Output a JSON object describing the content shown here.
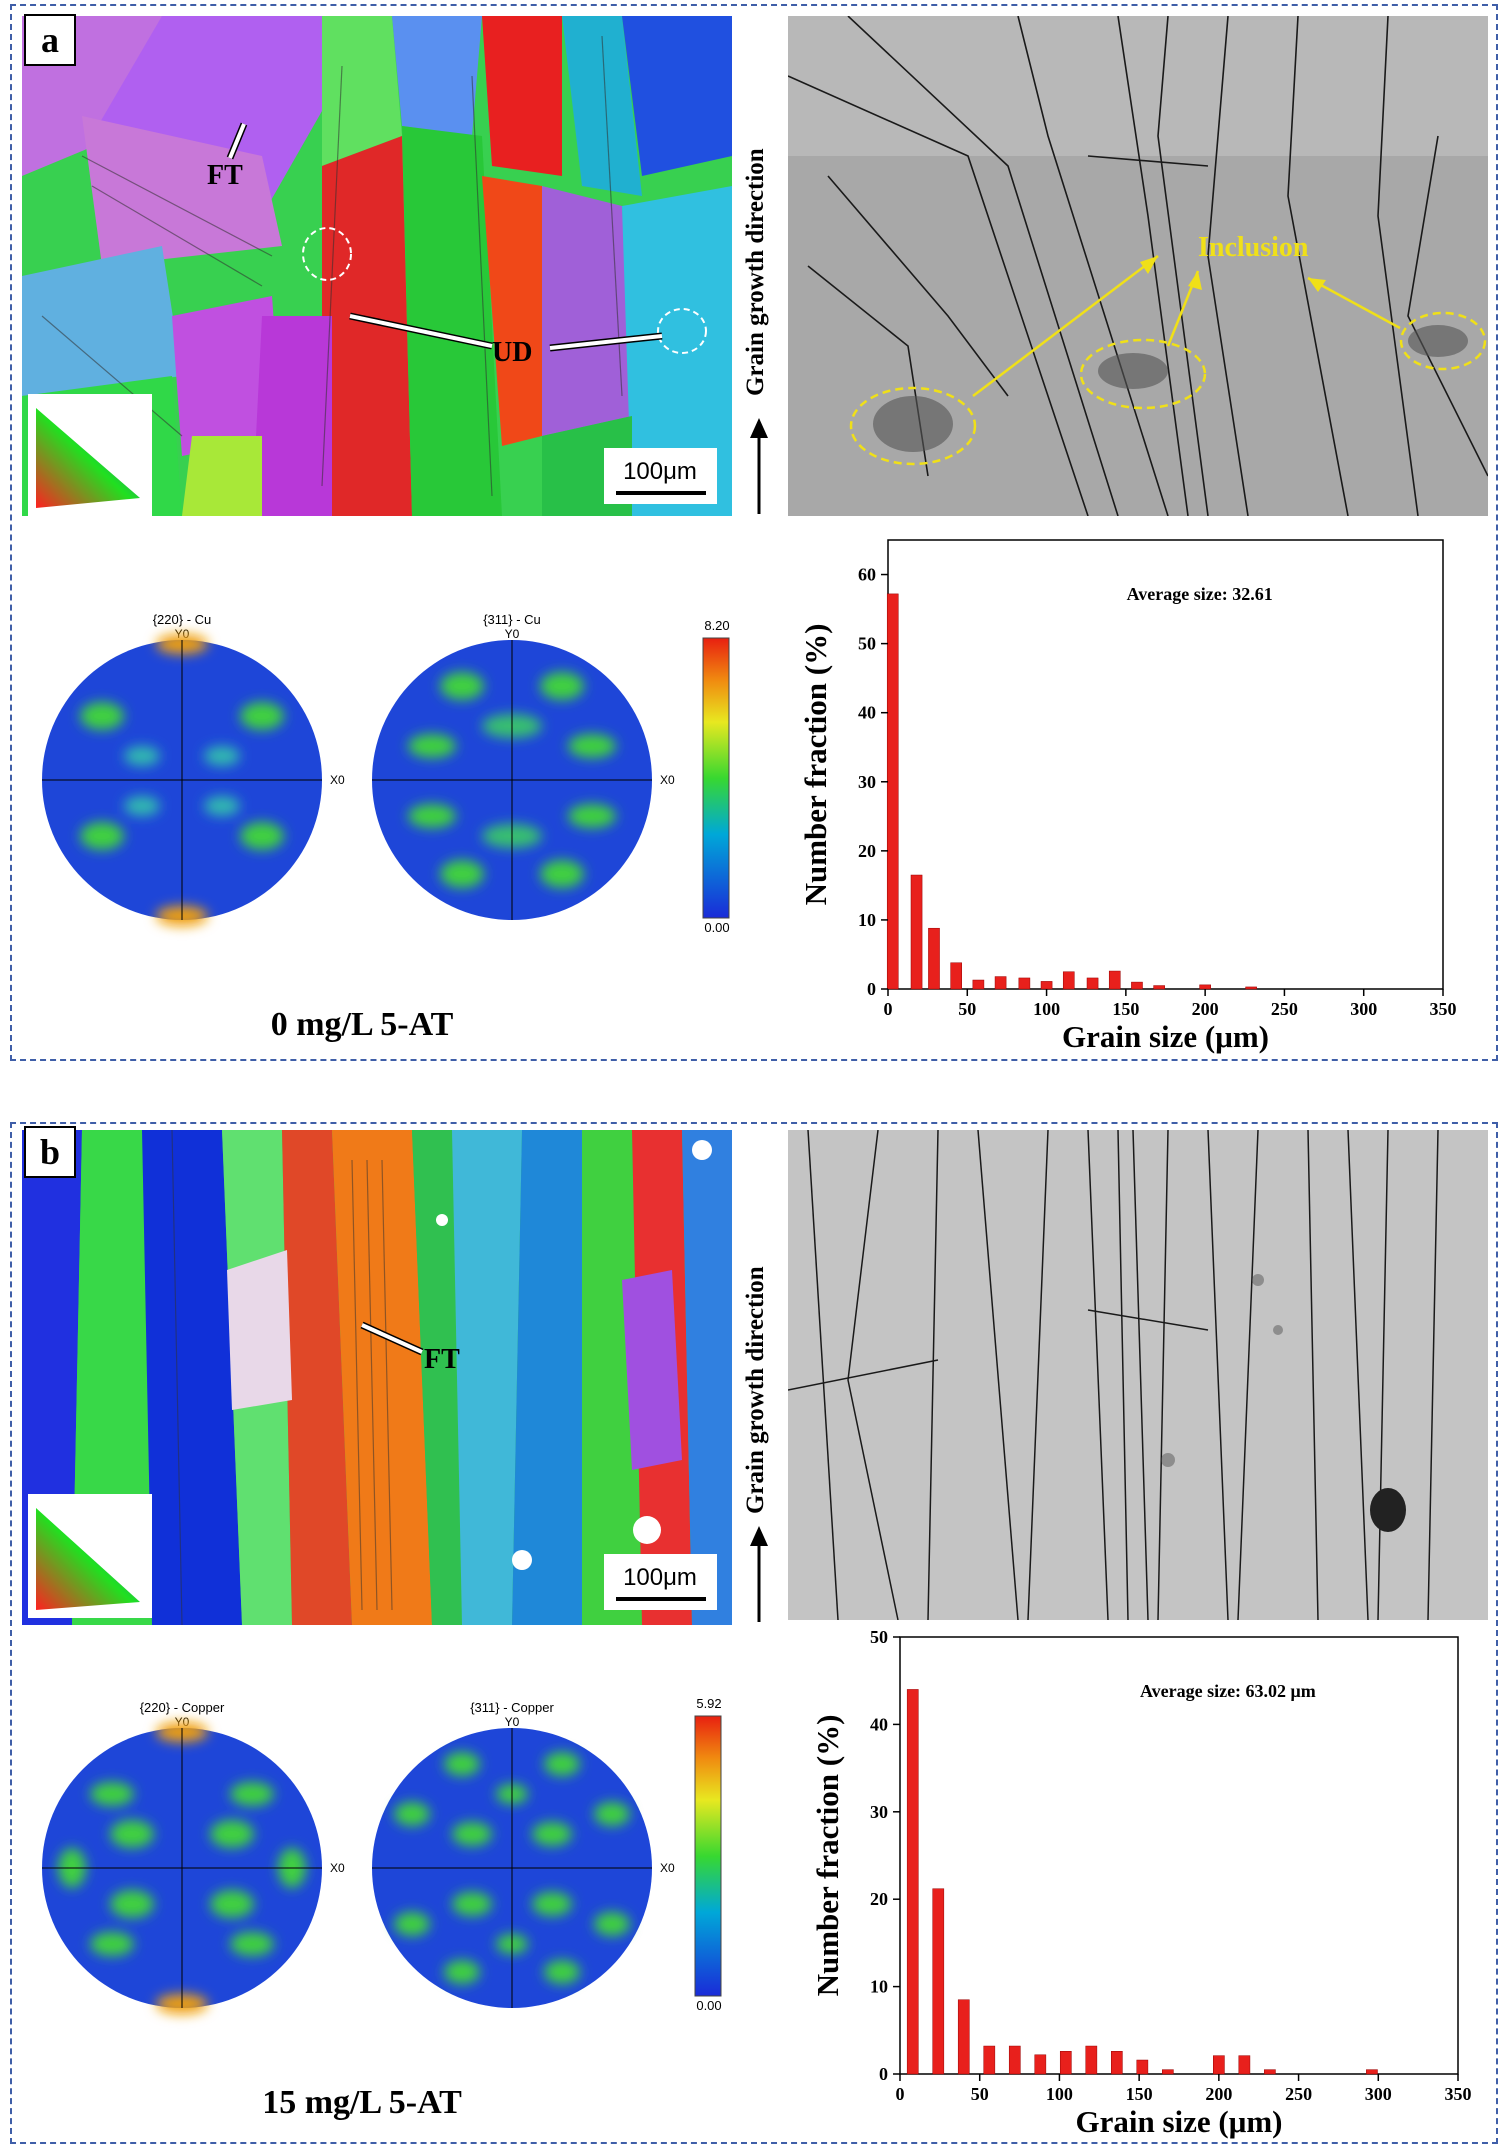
{
  "panels": [
    {
      "label": "a",
      "ebsd_annotations": {
        "ft": "FT",
        "ud": "UD",
        "scale": "100μm"
      },
      "sem_annotation": "Inclusion",
      "growth_direction": "Grain growth direction",
      "pole_figures": [
        {
          "title": "{220} - Cu",
          "y": "Y0",
          "x": "X0"
        },
        {
          "title": "{311} - Cu",
          "y": "Y0",
          "x": "X0"
        }
      ],
      "colorbar": {
        "max": "8.20",
        "min": "0.00"
      },
      "caption": "0 mg/L 5-AT",
      "colors": {
        "bar": "#e8201c",
        "frame": "#3f5ea8"
      }
    },
    {
      "label": "b",
      "ebsd_annotations": {
        "ft": "FT",
        "scale": "100μm"
      },
      "growth_direction": "Grain growth direction",
      "pole_figures": [
        {
          "title": "{220} - Copper",
          "y": "Y0",
          "x": "X0"
        },
        {
          "title": "{311} - Copper",
          "y": "Y0",
          "x": "X0"
        }
      ],
      "colorbar": {
        "max": "5.92",
        "min": "0.00"
      },
      "caption": "15 mg/L 5-AT",
      "colors": {
        "bar": "#e8201c",
        "frame": "#3f5ea8"
      }
    }
  ],
  "chart_data": [
    {
      "type": "bar",
      "annotation": "Average size: 32.61",
      "xlabel": "Grain size (μm)",
      "ylabel": "Number fraction (%)",
      "xlim": [
        0,
        350
      ],
      "ylim": [
        0,
        65
      ],
      "xticks": [
        0,
        50,
        100,
        150,
        200,
        250,
        300,
        350
      ],
      "yticks": [
        0,
        10,
        20,
        30,
        40,
        50,
        60
      ],
      "x": [
        3,
        18,
        29,
        43,
        57,
        71,
        86,
        100,
        114,
        129,
        143,
        157,
        171,
        200,
        229
      ],
      "values": [
        57.2,
        16.5,
        8.8,
        3.8,
        1.3,
        1.8,
        1.6,
        1.1,
        2.5,
        1.6,
        2.6,
        1.0,
        0.5,
        0.6,
        0.3
      ]
    },
    {
      "type": "bar",
      "annotation": "Average size: 63.02 μm",
      "xlabel": "Grain size (μm)",
      "ylabel": "Number fraction (%)",
      "xlim": [
        0,
        350
      ],
      "ylim": [
        0,
        50
      ],
      "xticks": [
        0,
        50,
        100,
        150,
        200,
        250,
        300,
        350
      ],
      "yticks": [
        0,
        10,
        20,
        30,
        40,
        50
      ],
      "x": [
        8,
        24,
        40,
        56,
        72,
        88,
        104,
        120,
        136,
        152,
        168,
        200,
        216,
        232,
        296
      ],
      "values": [
        44,
        21.2,
        8.5,
        3.2,
        3.2,
        2.2,
        2.6,
        3.2,
        2.6,
        1.6,
        0.5,
        2.1,
        2.1,
        0.5,
        0.5
      ]
    }
  ]
}
